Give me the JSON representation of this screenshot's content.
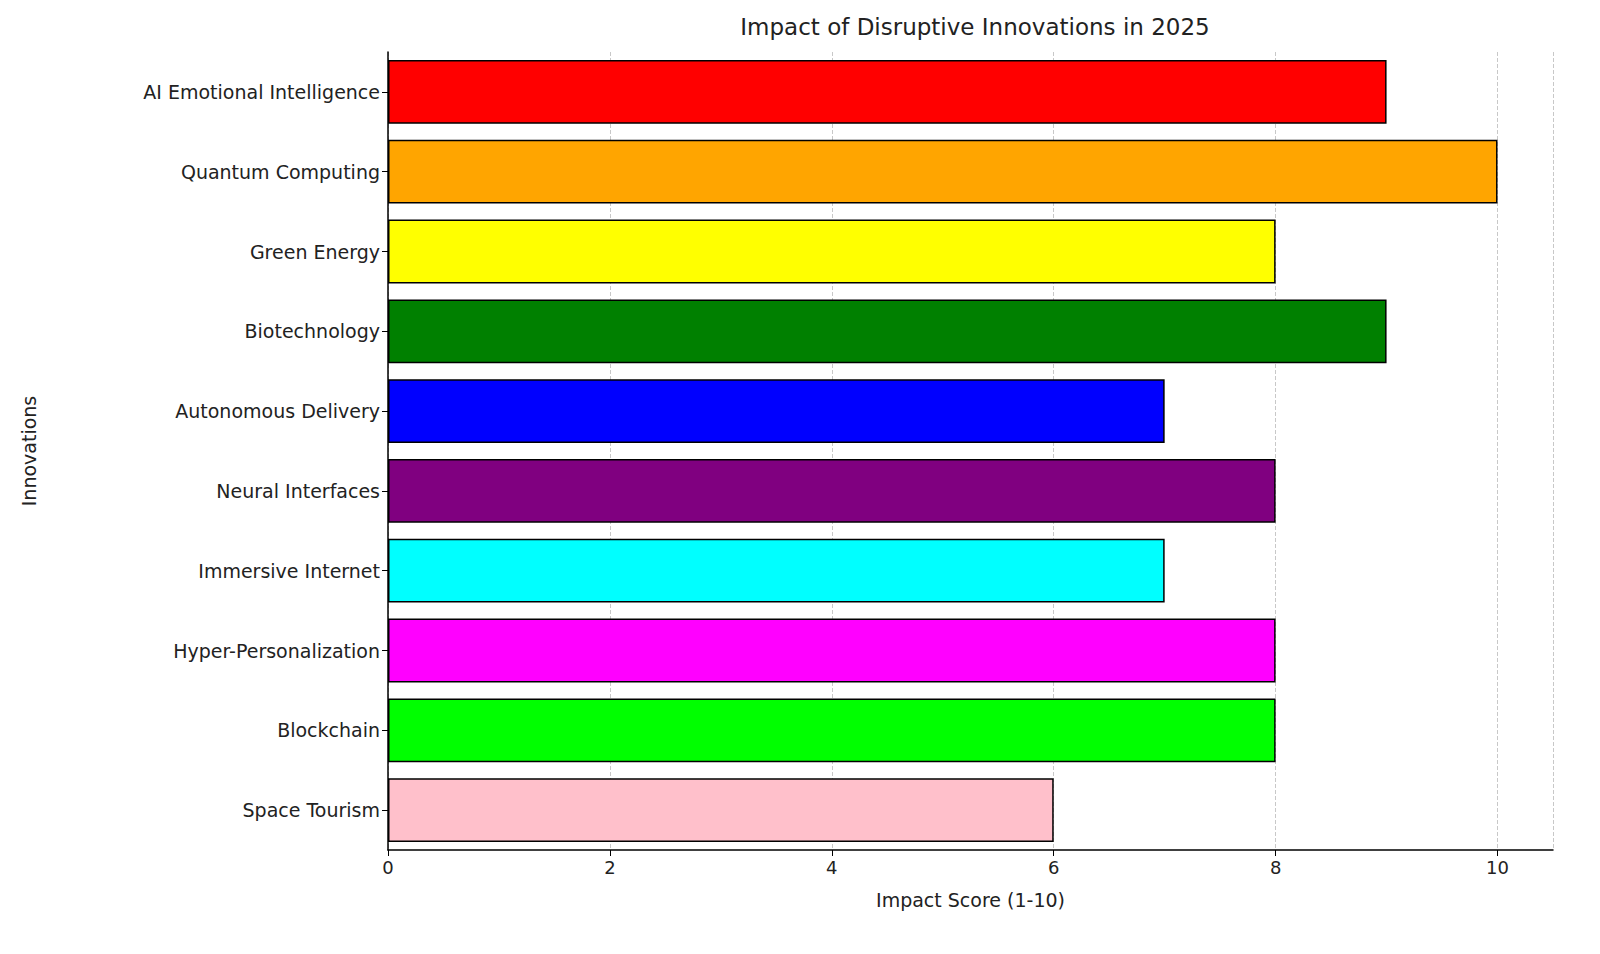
{
  "chart_data": {
    "type": "bar",
    "title": "Impact of Disruptive Innovations in 2025",
    "orientation": "horizontal",
    "x_label": "Impact Score (1-10)",
    "y_label": "Innovations",
    "categories": [
      "AI Emotional Intelligence",
      "Quantum Computing",
      "Green Energy",
      "Biotechnology",
      "Autonomous Delivery",
      "Neural Interfaces",
      "Immersive Internet",
      "Hyper-Personalization",
      "Blockchain",
      "Space Tourism"
    ],
    "values": [
      9,
      10,
      8,
      9,
      7,
      8,
      7,
      8,
      8,
      6
    ],
    "colors": [
      "#ff0000",
      "#ffa500",
      "#ffff00",
      "#008000",
      "#0000ff",
      "#800080",
      "#00ffff",
      "#ff00ff",
      "#00ff00",
      "#ffc0cb"
    ],
    "xlim": [
      0,
      10.5
    ],
    "xticks": [
      0,
      2,
      4,
      6,
      8,
      10
    ],
    "grid": true
  }
}
